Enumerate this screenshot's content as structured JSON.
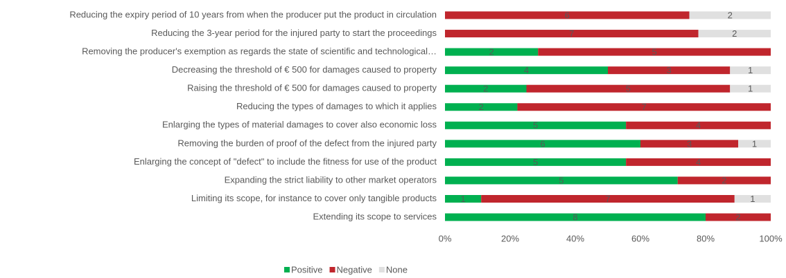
{
  "chart_data": {
    "type": "bar",
    "orientation": "horizontal",
    "stacking": "percent",
    "categories": [
      "Reducing the expiry period of 10 years from when the producer put the product in circulation",
      "Reducing the 3-year period for the injured party to start the proceedings",
      "Removing the producer's exemption as regards the state of scientific and technological…",
      "Decreasing the threshold of € 500 for damages caused to property",
      "Raising the threshold of € 500 for damages caused to property",
      "Reducing the types of damages to which it applies",
      "Enlarging the types of material damages to cover also economic loss",
      "Removing the burden of proof of the defect from the injured party",
      "Enlarging the concept of \"defect\" to include the fitness for use of the product",
      "Expanding the strict liability to other market operators",
      "Limiting its scope, for instance to cover only tangible products",
      "Extending its scope to services"
    ],
    "series": [
      {
        "name": "Positive",
        "color": "#00b050",
        "values": [
          0,
          0,
          2,
          4,
          2,
          2,
          5,
          6,
          5,
          5,
          1,
          8
        ]
      },
      {
        "name": "Negative",
        "color": "#c0262d",
        "values": [
          6,
          7,
          5,
          3,
          5,
          7,
          4,
          3,
          4,
          2,
          7,
          2
        ]
      },
      {
        "name": "None",
        "color": "#e0e0e0",
        "values": [
          2,
          2,
          0,
          1,
          1,
          0,
          0,
          1,
          0,
          0,
          1,
          0
        ]
      }
    ],
    "xlim": [
      0,
      100
    ],
    "xticks": [
      {
        "value": 0,
        "label": "0%"
      },
      {
        "value": 20,
        "label": "20%"
      },
      {
        "value": 40,
        "label": "40%"
      },
      {
        "value": 60,
        "label": "60%"
      },
      {
        "value": 80,
        "label": "80%"
      },
      {
        "value": 100,
        "label": "100%"
      }
    ],
    "legend": "bottom"
  }
}
